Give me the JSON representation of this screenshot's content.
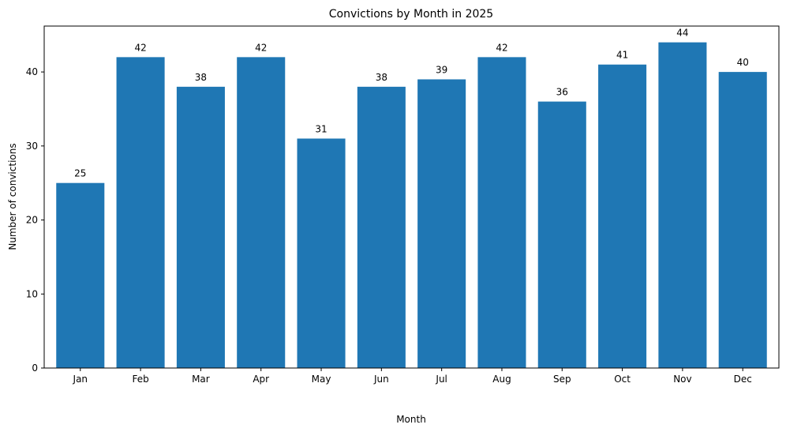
{
  "chart_data": {
    "type": "bar",
    "title": "Convictions by Month in 2025",
    "xlabel": "Month",
    "ylabel": "Number of convictions",
    "categories": [
      "Jan",
      "Feb",
      "Mar",
      "Apr",
      "May",
      "Jun",
      "Jul",
      "Aug",
      "Sep",
      "Oct",
      "Nov",
      "Dec"
    ],
    "values": [
      25,
      42,
      38,
      42,
      31,
      38,
      39,
      42,
      36,
      41,
      44,
      40
    ],
    "ylim": [
      0,
      46.2
    ],
    "yticks": [
      0,
      10,
      20,
      30,
      40
    ],
    "grid": false,
    "bar_color": "#1f77b4",
    "data_labels": true
  }
}
